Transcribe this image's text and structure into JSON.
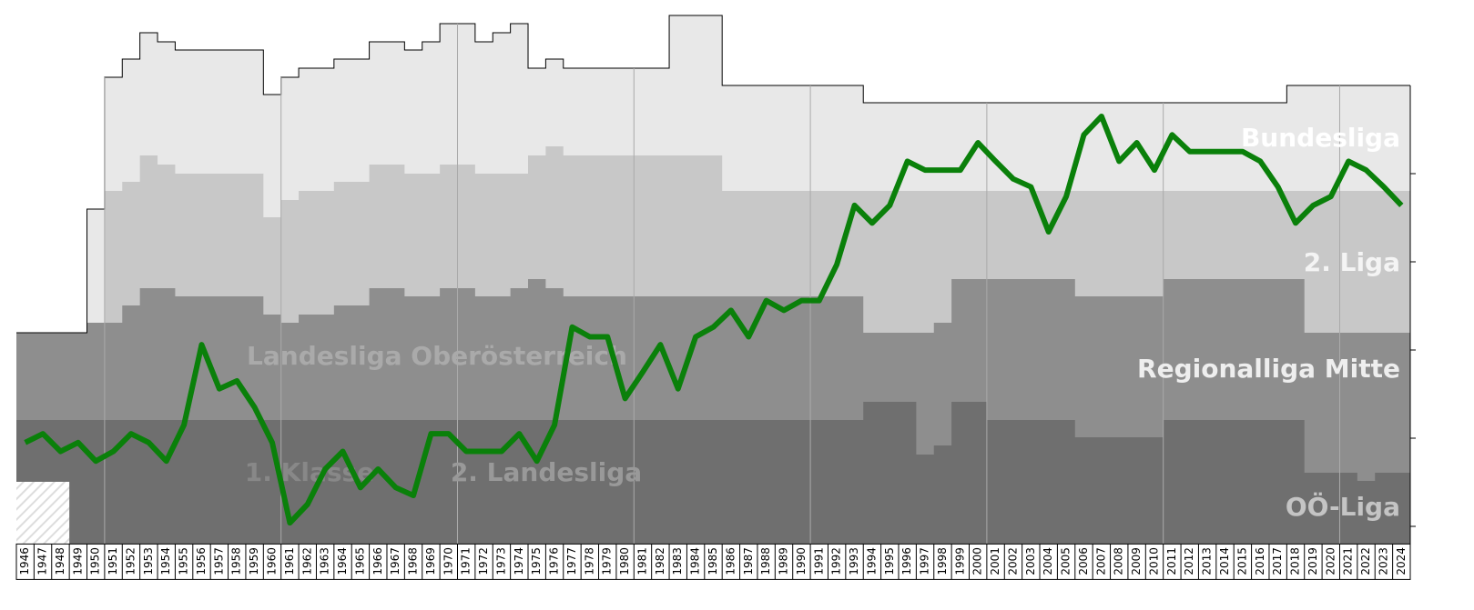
{
  "chart_data": {
    "type": "line",
    "categories": [
      "1946",
      "1947",
      "1948",
      "1949",
      "1950",
      "1951",
      "1952",
      "1953",
      "1954",
      "1955",
      "1956",
      "1957",
      "1958",
      "1959",
      "1960",
      "1961",
      "1962",
      "1963",
      "1964",
      "1965",
      "1966",
      "1967",
      "1968",
      "1969",
      "1970",
      "1971",
      "1972",
      "1973",
      "1974",
      "1975",
      "1976",
      "1977",
      "1978",
      "1979",
      "1980",
      "1981",
      "1982",
      "1983",
      "1984",
      "1985",
      "1986",
      "1987",
      "1988",
      "1989",
      "1990",
      "1991",
      "1992",
      "1993",
      "1994",
      "1995",
      "1996",
      "1997",
      "1998",
      "1999",
      "2000",
      "2001",
      "2002",
      "2003",
      "2004",
      "2005",
      "2006",
      "2007",
      "2008",
      "2009",
      "2010",
      "2011",
      "2012",
      "2013",
      "2014",
      "2015",
      "2016",
      "2017",
      "2018",
      "2019",
      "2020",
      "2021",
      "2022",
      "2023",
      "2024"
    ],
    "series": [
      {
        "color": "#0a800a",
        "values": [
          40.5,
          39.5,
          41.5,
          40.5,
          42.6,
          41.5,
          39.5,
          40.5,
          42.6,
          38.5,
          29.4,
          34.4,
          33.5,
          36.5,
          40.5,
          49.6,
          47.5,
          43.5,
          41.5,
          45.6,
          43.5,
          45.6,
          46.5,
          39.5,
          39.5,
          41.5,
          41.5,
          41.5,
          39.5,
          42.6,
          38.5,
          27.4,
          28.5,
          28.5,
          35.5,
          32.5,
          29.4,
          34.4,
          28.5,
          27.4,
          25.5,
          28.5,
          24.4,
          25.5,
          24.4,
          24.4,
          20.3,
          13.6,
          15.6,
          13.6,
          8.6,
          9.6,
          9.6,
          9.6,
          6.5,
          8.6,
          10.6,
          11.5,
          16.6,
          12.6,
          5.6,
          3.5,
          8.6,
          6.5,
          9.6,
          5.6,
          7.5,
          7.5,
          7.5,
          7.5,
          8.6,
          11.5,
          15.6,
          13.6,
          12.6,
          8.6,
          9.6,
          11.5,
          13.6
        ]
      }
    ],
    "ylim": [
      -8,
      52
    ],
    "yticks": [
      10,
      20,
      30,
      40,
      50
    ],
    "inverted": true,
    "annotations": [
      "Bundesliga",
      "2. Liga",
      "Regionalliga Mitte",
      "OÖ-Liga",
      "Landesliga Oberösterreich",
      "1. Klasse",
      "2. Landesliga"
    ]
  }
}
